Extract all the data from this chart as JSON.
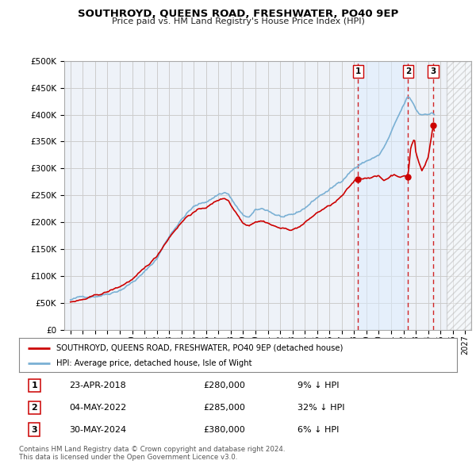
{
  "title": "SOUTHROYD, QUEENS ROAD, FRESHWATER, PO40 9EP",
  "subtitle": "Price paid vs. HM Land Registry's House Price Index (HPI)",
  "property_label": "SOUTHROYD, QUEENS ROAD, FRESHWATER, PO40 9EP (detached house)",
  "hpi_label": "HPI: Average price, detached house, Isle of Wight",
  "footer1": "Contains HM Land Registry data © Crown copyright and database right 2024.",
  "footer2": "This data is licensed under the Open Government Licence v3.0.",
  "transactions": [
    {
      "num": 1,
      "date": "23-APR-2018",
      "price": "£280,000",
      "hpi": "9% ↓ HPI"
    },
    {
      "num": 2,
      "date": "04-MAY-2022",
      "price": "£285,000",
      "hpi": "32% ↓ HPI"
    },
    {
      "num": 3,
      "date": "30-MAY-2024",
      "price": "£380,000",
      "hpi": "6% ↓ HPI"
    }
  ],
  "sale_dates_decimal": [
    2018.31,
    2022.37,
    2024.41
  ],
  "sale_prices": [
    280000,
    285000,
    380000
  ],
  "property_color": "#cc0000",
  "hpi_color": "#7ab0d4",
  "vline_color": "#cc0000",
  "shade_color": "#ddeeff",
  "background_color": "#ffffff",
  "grid_color": "#cccccc",
  "plot_bg": "#eef2f8",
  "ylim": [
    0,
    500000
  ],
  "yticks": [
    0,
    50000,
    100000,
    150000,
    200000,
    250000,
    300000,
    350000,
    400000,
    450000,
    500000
  ],
  "xlim": [
    1994.5,
    2027.5
  ],
  "hatch_start": 2025.5
}
